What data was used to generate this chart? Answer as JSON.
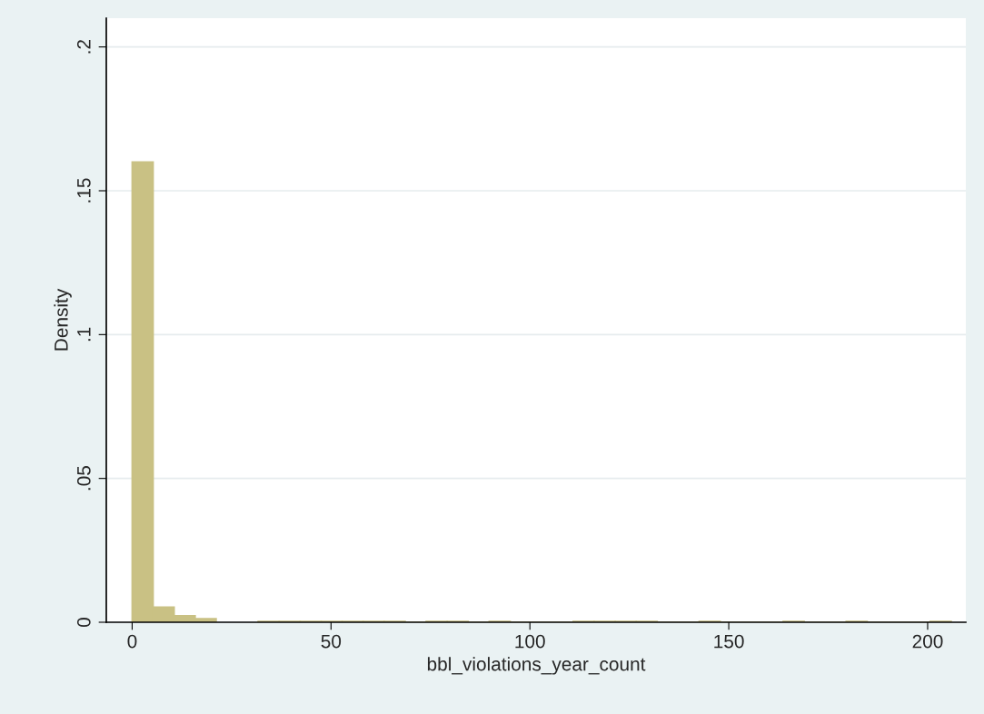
{
  "chart_data": {
    "type": "histogram",
    "xlabel": "bbl_violations_year_count",
    "ylabel": "Density",
    "bins": [
      0,
      5.28,
      10.56,
      15.84,
      21.12,
      26.4,
      31.68,
      36.96,
      42.24,
      47.52,
      52.8,
      58.08,
      63.36,
      68.64,
      73.92,
      79.2,
      84.48,
      89.76,
      95.04,
      100.32,
      105.6,
      110.88,
      116.16,
      121.44,
      126.72,
      132,
      137.28,
      142.56,
      147.84,
      153.12,
      158.4,
      163.68,
      168.96,
      174.24,
      179.52,
      184.8,
      190.08,
      195.36,
      200.64,
      205.92
    ],
    "values": [
      0.16,
      0.0053,
      0.0023,
      0.0012,
      null,
      null,
      0.0003,
      0.0003,
      0.0003,
      0.0003,
      0.0003,
      0.0003,
      0.0003,
      0,
      0.0003,
      0.0003,
      0,
      0.0003,
      0,
      0,
      0,
      0.0003,
      0.0003,
      0.0003,
      0.0003,
      0,
      0,
      0.0003,
      0,
      0,
      0,
      0.0003,
      0,
      0,
      0.0003,
      0,
      0,
      0,
      0.0003
    ],
    "color": "#c9c184",
    "xlim": [
      -6.5,
      209.6
    ],
    "ylim": [
      0,
      0.21
    ],
    "xticks": [
      0,
      50,
      100,
      150,
      200
    ],
    "yticks": [
      0,
      {
        "value": 0.05,
        "label": ".05"
      },
      {
        "value": 0.1,
        "label": ".1"
      },
      {
        "value": 0.15,
        "label": ".15"
      },
      {
        "value": 0.2,
        "label": ".2"
      }
    ],
    "grid": "y"
  }
}
